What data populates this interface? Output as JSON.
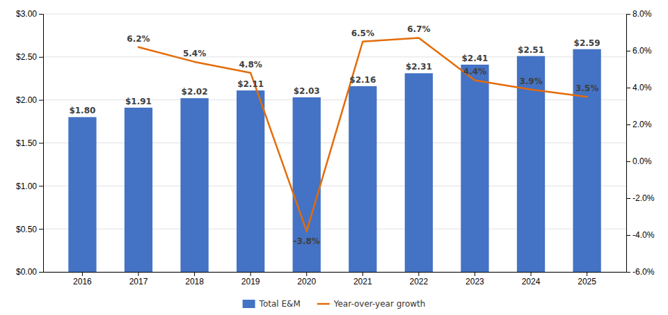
{
  "chart_data": {
    "type": "bar",
    "categories": [
      "2016",
      "2017",
      "2018",
      "2019",
      "2020",
      "2021",
      "2022",
      "2023",
      "2024",
      "2025"
    ],
    "series": [
      {
        "name": "Total E&M",
        "type": "bar",
        "color": "#4472C4",
        "values": [
          1.8,
          1.91,
          2.02,
          2.11,
          2.03,
          2.16,
          2.31,
          2.41,
          2.51,
          2.59
        ],
        "value_labels": [
          "$1.80",
          "$1.91",
          "$2.02",
          "$2.11",
          "$2.03",
          "$2.16",
          "$2.31",
          "$2.41",
          "$2.51",
          "$2.59"
        ]
      },
      {
        "name": "Year-over-year growth",
        "type": "line",
        "color": "#E36C09",
        "axis": "y2",
        "values": [
          null,
          6.2,
          5.4,
          4.8,
          -3.8,
          6.5,
          6.7,
          4.4,
          3.9,
          3.5
        ],
        "value_labels": [
          null,
          "6.2%",
          "5.4%",
          "4.8%",
          "-3.8%",
          "6.5%",
          "6.7%",
          "4.4%",
          "3.9%",
          "3.5%"
        ]
      }
    ],
    "ylim": [
      0.0,
      3.0
    ],
    "yticks": [
      {
        "value": 0.0,
        "label": "$0.00"
      },
      {
        "value": 0.5,
        "label": "$0.50"
      },
      {
        "value": 1.0,
        "label": "$1.00"
      },
      {
        "value": 1.5,
        "label": "$1.50"
      },
      {
        "value": 2.0,
        "label": "$2.00"
      },
      {
        "value": 2.5,
        "label": "$2.50"
      },
      {
        "value": 3.0,
        "label": "$3.00"
      }
    ],
    "y2lim": [
      -6.0,
      8.0
    ],
    "y2ticks": [
      {
        "value": -6.0,
        "label": "-6.0%"
      },
      {
        "value": -4.0,
        "label": "-4.0%"
      },
      {
        "value": -2.0,
        "label": "-2.0%"
      },
      {
        "value": 0.0,
        "label": "0.0%"
      },
      {
        "value": 2.0,
        "label": "2.0%"
      },
      {
        "value": 4.0,
        "label": "4.0%"
      },
      {
        "value": 6.0,
        "label": "6.0%"
      },
      {
        "value": 8.0,
        "label": "8.0%"
      }
    ],
    "grid": true,
    "legend": "bottom",
    "data_labels": true
  }
}
